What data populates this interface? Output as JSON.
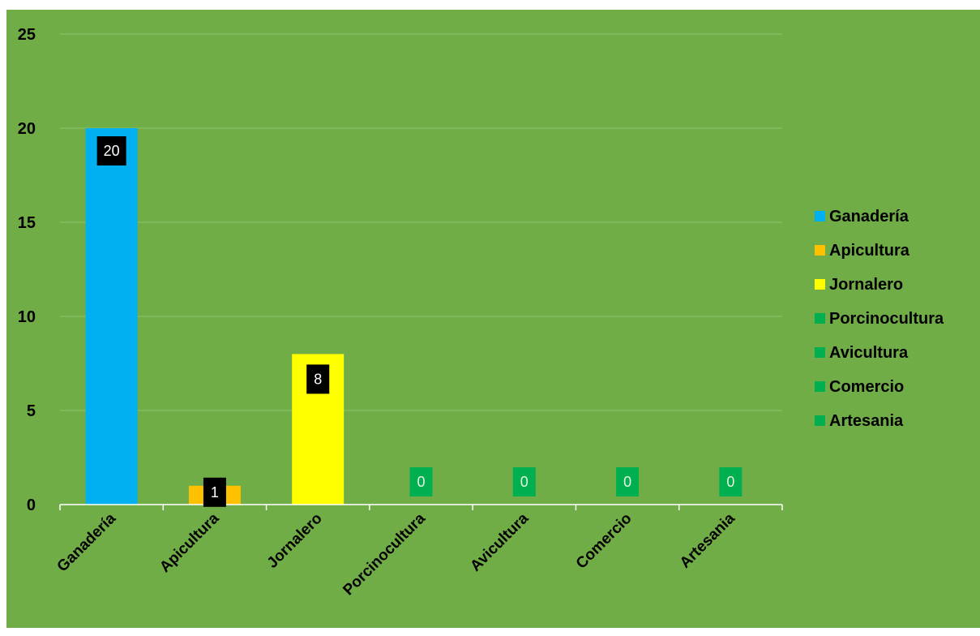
{
  "colors": {
    "background": "#70ad47",
    "gridline": "#8ec46a",
    "axis": "#ffffff"
  },
  "chart_data": {
    "type": "bar",
    "title": "",
    "xlabel": "",
    "ylabel": "",
    "ylim": [
      0,
      25
    ],
    "yticks": [
      "0",
      "5",
      "10",
      "15",
      "20",
      "25"
    ],
    "grid": true,
    "legend_position": "right",
    "categories": [
      "Ganadería",
      "Apicultura",
      "Jornalero",
      "Porcinocultura",
      "Avicultura",
      "Comercio",
      "Artesania"
    ],
    "values": [
      20,
      1,
      8,
      0,
      0,
      0,
      0
    ],
    "data_labels": [
      "20",
      "1",
      "8",
      "0",
      "0",
      "0",
      "0"
    ],
    "bar_colors": [
      "#00b0f0",
      "#ffc000",
      "#ffff00",
      "#00b050",
      "#00b050",
      "#00b050",
      "#00b050"
    ],
    "label_box_colors": [
      "#000000",
      "#000000",
      "#000000",
      "#00b050",
      "#00b050",
      "#00b050",
      "#00b050"
    ],
    "label_text_colors": [
      "#ffffff",
      "#ffffff",
      "#ffffff",
      "#e8f5e0",
      "#e8f5e0",
      "#e8f5e0",
      "#e8f5e0"
    ],
    "legend": [
      "Ganadería",
      "Apicultura",
      "Jornalero",
      "Porcinocultura",
      "Avicultura",
      "Comercio",
      "Artesania"
    ]
  }
}
